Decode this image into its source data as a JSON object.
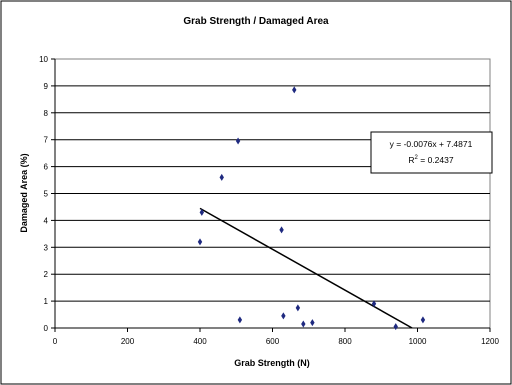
{
  "chart_data": {
    "type": "scatter",
    "title": "Grab Strength /  Damaged Area",
    "xlabel": "Grab Strength (N)",
    "ylabel": "Damaged Area (%)",
    "xlim": [
      0,
      1200
    ],
    "ylim": [
      0,
      10
    ],
    "x_ticks": [
      0,
      200,
      400,
      600,
      800,
      1000,
      1200
    ],
    "y_ticks": [
      0,
      1,
      2,
      3,
      4,
      5,
      6,
      7,
      8,
      9,
      10
    ],
    "grid": "horizontal major gridlines",
    "points": [
      {
        "x": 660,
        "y": 8.85
      },
      {
        "x": 505,
        "y": 6.95
      },
      {
        "x": 460,
        "y": 5.6
      },
      {
        "x": 625,
        "y": 3.65
      },
      {
        "x": 405,
        "y": 4.3
      },
      {
        "x": 400,
        "y": 3.2
      },
      {
        "x": 510,
        "y": 0.3
      },
      {
        "x": 630,
        "y": 0.45
      },
      {
        "x": 670,
        "y": 0.75
      },
      {
        "x": 685,
        "y": 0.15
      },
      {
        "x": 710,
        "y": 0.2
      },
      {
        "x": 880,
        "y": 0.9
      },
      {
        "x": 940,
        "y": 0.05
      },
      {
        "x": 1015,
        "y": 0.3
      }
    ],
    "trendline": {
      "slope": -0.0076,
      "intercept": 7.4871,
      "x_start": 400,
      "x_end": 985
    },
    "equation_text": "y = -0.0076x + 7.4871",
    "r2_prefix": "R",
    "r2_sup": "2",
    "r2_value": " = 0.2437",
    "colors": {
      "marker": "#1f2a80",
      "trendline": "#000000",
      "grid": "#000000",
      "plot_border": "#808080"
    }
  }
}
